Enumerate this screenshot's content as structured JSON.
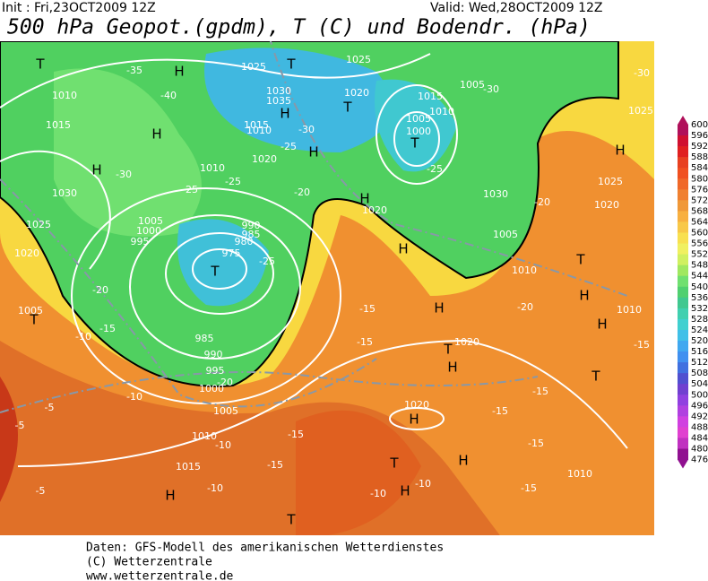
{
  "header": {
    "init": "Init : Fri,23OCT2009  12Z",
    "valid": "Valid: Wed,28OCT2009  12Z",
    "title": "500 hPa Geopot.(gpdm), T (C) und Bodendr. (hPa)"
  },
  "legend": {
    "ticks": [
      "600",
      "596",
      "592",
      "588",
      "584",
      "580",
      "576",
      "572",
      "568",
      "564",
      "560",
      "556",
      "552",
      "548",
      "544",
      "540",
      "536",
      "532",
      "528",
      "524",
      "520",
      "516",
      "512",
      "508",
      "504",
      "500",
      "496",
      "492",
      "488",
      "484",
      "480",
      "476"
    ],
    "colors": [
      "#b0105a",
      "#d01030",
      "#e02020",
      "#e84020",
      "#f05020",
      "#f06828",
      "#f08030",
      "#f09838",
      "#f8b040",
      "#f8c848",
      "#f8e050",
      "#f0f060",
      "#d0f060",
      "#a0e860",
      "#70e070",
      "#50d070",
      "#40c890",
      "#40d0b0",
      "#40d0d0",
      "#40c0e8",
      "#40a8f0",
      "#4090f0",
      "#4070e0",
      "#5050d0",
      "#7040d0",
      "#9040e0",
      "#b040e0",
      "#d040e0",
      "#e040d0",
      "#c030c0",
      "#901090"
    ]
  },
  "map_labels": [
    "T",
    "H",
    "T",
    "1025",
    "1030",
    "1035",
    "H",
    "1020",
    "T",
    "1025",
    "-35",
    "-40",
    "1010",
    "1015",
    "H",
    "H",
    "1030",
    "1025",
    "1020",
    "1005",
    "1000",
    "995",
    "990",
    "985",
    "980",
    "975",
    "T",
    "-25",
    "985",
    "990",
    "995",
    "1000",
    "1005",
    "1010",
    "1015",
    "H",
    "T",
    "-20",
    "1005",
    "T",
    "H",
    "H",
    "1020",
    "T",
    "1005",
    "1000",
    "1010",
    "1015",
    "1005",
    "-30",
    "1030",
    "-25",
    "1005",
    "1010",
    "H",
    "1025",
    "1020",
    "T",
    "H",
    "H",
    "T",
    "1010",
    "H",
    "H",
    "T",
    "1020",
    "H",
    "1020",
    "H",
    "T",
    "H",
    "H",
    "1010",
    "-15",
    "-15",
    "-10",
    "-5",
    "-5",
    "-5",
    "-10",
    "-15",
    "-15",
    "-10",
    "-10",
    "-15",
    "-15",
    "-15",
    "-15",
    "-20",
    "-20",
    "-15",
    "-30",
    "1025",
    "-20",
    "-15",
    "-10",
    "-10",
    "-25",
    "-25",
    "-30",
    "1010",
    "1010",
    "1020",
    "1015",
    "-20",
    "-25",
    "-30"
  ],
  "footer": [
    "Daten: GFS-Modell des amerikanischen Wetterdienstes",
    "(C) Wetterzentrale",
    "www.wetterzentrale.de"
  ]
}
